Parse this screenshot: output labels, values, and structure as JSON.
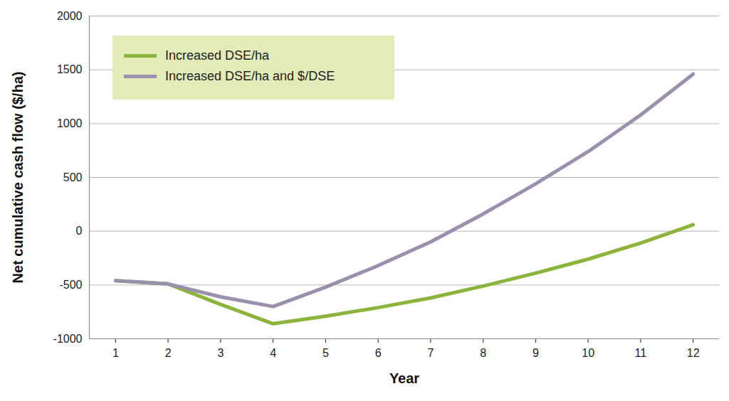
{
  "chart_data": {
    "type": "line",
    "x_label": "Year",
    "y_label": "Net cumulative cash flow ($/ha)",
    "x": [
      1,
      2,
      3,
      4,
      5,
      6,
      7,
      8,
      9,
      10,
      11,
      12
    ],
    "series": [
      {
        "name": "Increased DSE/ha",
        "color": "#8cb43c",
        "values": [
          -460,
          -490,
          -680,
          -860,
          -790,
          -710,
          -620,
          -510,
          -390,
          -260,
          -110,
          60
        ]
      },
      {
        "name": "Increased DSE/ha and $/DSE",
        "color": "#9b8fae",
        "values": [
          -460,
          -490,
          -610,
          -700,
          -520,
          -320,
          -100,
          160,
          440,
          740,
          1080,
          1460
        ]
      }
    ],
    "xlim": [
      0.5,
      12.5
    ],
    "xticks": [
      1,
      2,
      3,
      4,
      5,
      6,
      7,
      8,
      9,
      10,
      11,
      12
    ],
    "ylim": [
      -1000,
      2000
    ],
    "yticks": [
      -1000,
      -500,
      0,
      500,
      1000,
      1500,
      2000
    ],
    "grid": true,
    "legend": "top-left"
  }
}
